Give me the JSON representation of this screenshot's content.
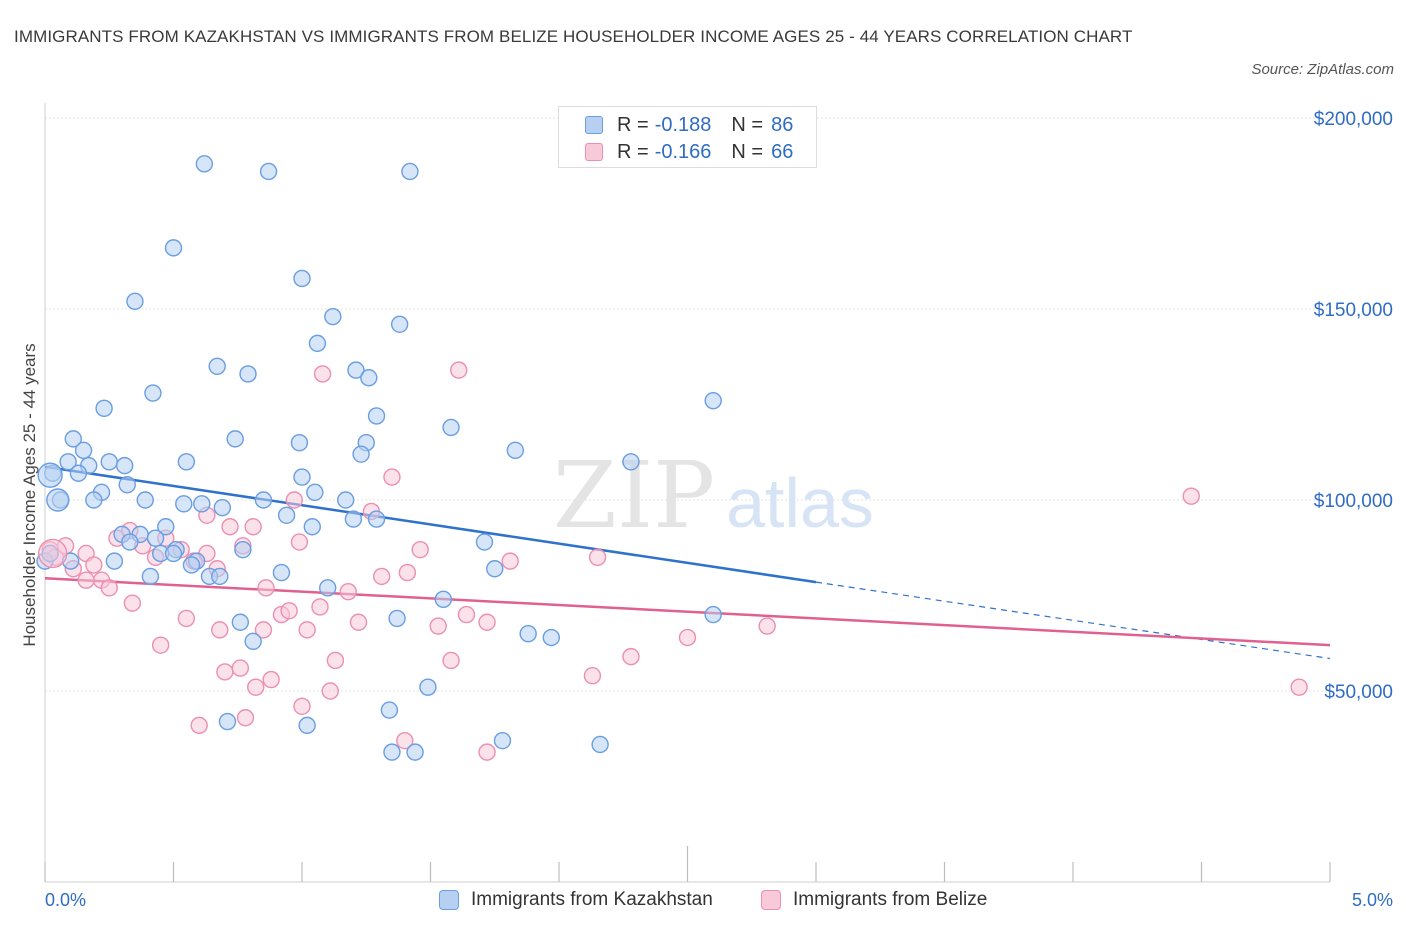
{
  "title": "IMMIGRANTS FROM KAZAKHSTAN VS IMMIGRANTS FROM BELIZE HOUSEHOLDER INCOME AGES 25 - 44 YEARS CORRELATION CHART",
  "source": "Source: ZipAtlas.com",
  "watermark": {
    "zip": "ZIP",
    "atlas": "atlas"
  },
  "legend_stats": [
    {
      "r_label": "R =",
      "r_value": "-0.188",
      "n_label": "N =",
      "n_value": "86"
    },
    {
      "r_label": "R =",
      "r_value": "-0.166",
      "n_label": "N =",
      "n_value": "66"
    }
  ],
  "x_tick_labels": {
    "min": "0.0%",
    "max": "5.0%"
  },
  "colors": {
    "kazakhstan": "#6a9ee2",
    "kazakhstan_fill": "#b7d0f2",
    "belize": "#ec8fb0",
    "belize_fill": "#f7c9d9",
    "kaz_line": "#2f72cc",
    "bel_line": "#e0608f",
    "axis_label": "#2f6cc4",
    "grid": "#e3e3e3"
  },
  "chart_data": {
    "type": "scatter",
    "title": "IMMIGRANTS FROM KAZAKHSTAN VS IMMIGRANTS FROM BELIZE HOUSEHOLDER INCOME AGES 25 - 44 YEARS CORRELATION CHART",
    "xlabel": "",
    "ylabel": "Householder Income Ages 25 - 44 years",
    "xlim": [
      0,
      5
    ],
    "ylim": [
      0,
      200000
    ],
    "x_unit": "%",
    "y_ticks": [
      50000,
      100000,
      150000,
      200000
    ],
    "y_tick_labels": [
      "$50,000",
      "$100,000",
      "$150,000",
      "$200,000"
    ],
    "grid": true,
    "legend_position": "bottom",
    "series": [
      {
        "name": "Immigrants from Kazakhstan",
        "color": "#6a9ee2",
        "r": -0.188,
        "n": 86,
        "trend": {
          "x0": 0.0,
          "y0": 108700,
          "x1": 3.0,
          "y1": 78500,
          "dashed_to_x": 5.0,
          "dashed_to_y": 58500
        },
        "points": [
          [
            0.62,
            188000
          ],
          [
            0.87,
            186000
          ],
          [
            1.42,
            186000
          ],
          [
            0.5,
            166000
          ],
          [
            1.0,
            158000
          ],
          [
            0.35,
            152000
          ],
          [
            1.12,
            148000
          ],
          [
            1.38,
            146000
          ],
          [
            1.06,
            141000
          ],
          [
            0.67,
            135000
          ],
          [
            0.79,
            133000
          ],
          [
            1.21,
            134000
          ],
          [
            1.26,
            132000
          ],
          [
            0.42,
            128000
          ],
          [
            2.6,
            126000
          ],
          [
            0.23,
            124000
          ],
          [
            1.29,
            122000
          ],
          [
            0.74,
            116000
          ],
          [
            1.58,
            119000
          ],
          [
            0.11,
            116000
          ],
          [
            0.99,
            115000
          ],
          [
            1.25,
            115000
          ],
          [
            1.23,
            112000
          ],
          [
            1.83,
            113000
          ],
          [
            0.15,
            113000
          ],
          [
            0.09,
            110000
          ],
          [
            0.55,
            110000
          ],
          [
            0.17,
            109000
          ],
          [
            0.25,
            110000
          ],
          [
            0.31,
            109000
          ],
          [
            2.28,
            110000
          ],
          [
            0.13,
            107000
          ],
          [
            1.0,
            106000
          ],
          [
            0.32,
            104000
          ],
          [
            1.05,
            102000
          ],
          [
            0.22,
            102000
          ],
          [
            0.03,
            107000
          ],
          [
            0.06,
            100000
          ],
          [
            0.19,
            100000
          ],
          [
            0.39,
            100000
          ],
          [
            0.54,
            99000
          ],
          [
            0.61,
            99000
          ],
          [
            0.69,
            98000
          ],
          [
            0.85,
            100000
          ],
          [
            1.17,
            100000
          ],
          [
            0.94,
            96000
          ],
          [
            1.04,
            93000
          ],
          [
            1.2,
            95000
          ],
          [
            1.29,
            95000
          ],
          [
            0.47,
            93000
          ],
          [
            0.3,
            91000
          ],
          [
            0.37,
            91000
          ],
          [
            0.43,
            90000
          ],
          [
            0.33,
            89000
          ],
          [
            0.51,
            87000
          ],
          [
            1.71,
            89000
          ],
          [
            0.77,
            87000
          ],
          [
            0.45,
            86000
          ],
          [
            0.5,
            86000
          ],
          [
            0.59,
            84000
          ],
          [
            0.57,
            83000
          ],
          [
            1.75,
            82000
          ],
          [
            0.64,
            80000
          ],
          [
            0.68,
            80000
          ],
          [
            0.41,
            80000
          ],
          [
            0.92,
            81000
          ],
          [
            1.1,
            77000
          ],
          [
            1.55,
            74000
          ],
          [
            2.6,
            70000
          ],
          [
            1.37,
            69000
          ],
          [
            0.76,
            68000
          ],
          [
            1.88,
            65000
          ],
          [
            1.97,
            64000
          ],
          [
            0.81,
            63000
          ],
          [
            1.49,
            51000
          ],
          [
            1.34,
            45000
          ],
          [
            0.71,
            42000
          ],
          [
            1.02,
            41000
          ],
          [
            1.78,
            37000
          ],
          [
            2.16,
            36000
          ],
          [
            1.35,
            34000
          ],
          [
            1.44,
            34000
          ],
          [
            0.0,
            84000
          ],
          [
            0.02,
            86000
          ],
          [
            0.27,
            84000
          ],
          [
            0.1,
            84000
          ]
        ]
      },
      {
        "name": "Immigrants from Belize",
        "color": "#ec8fb0",
        "r": -0.166,
        "n": 66,
        "trend": {
          "x0": 0.0,
          "y0": 79500,
          "x1": 5.0,
          "y1": 62000
        },
        "points": [
          [
            0.02,
            87000
          ],
          [
            0.04,
            85000
          ],
          [
            0.08,
            88000
          ],
          [
            0.11,
            82000
          ],
          [
            0.16,
            86000
          ],
          [
            0.19,
            83000
          ],
          [
            0.22,
            79000
          ],
          [
            0.25,
            77000
          ],
          [
            0.28,
            90000
          ],
          [
            0.33,
            92000
          ],
          [
            0.38,
            88000
          ],
          [
            0.43,
            85000
          ],
          [
            0.47,
            90000
          ],
          [
            0.53,
            87000
          ],
          [
            0.58,
            84000
          ],
          [
            0.63,
            86000
          ],
          [
            0.67,
            82000
          ],
          [
            0.72,
            93000
          ],
          [
            0.77,
            88000
          ],
          [
            0.81,
            93000
          ],
          [
            0.86,
            77000
          ],
          [
            0.92,
            70000
          ],
          [
            0.97,
            100000
          ],
          [
            1.02,
            66000
          ],
          [
            1.07,
            72000
          ],
          [
            1.13,
            58000
          ],
          [
            1.18,
            76000
          ],
          [
            1.22,
            68000
          ],
          [
            1.27,
            97000
          ],
          [
            1.31,
            80000
          ],
          [
            1.35,
            106000
          ],
          [
            1.41,
            81000
          ],
          [
            1.46,
            87000
          ],
          [
            1.53,
            67000
          ],
          [
            1.58,
            58000
          ],
          [
            1.64,
            70000
          ],
          [
            1.72,
            68000
          ],
          [
            1.81,
            84000
          ],
          [
            2.15,
            85000
          ],
          [
            2.13,
            54000
          ],
          [
            2.28,
            59000
          ],
          [
            2.5,
            64000
          ],
          [
            2.81,
            67000
          ],
          [
            1.08,
            133000
          ],
          [
            1.61,
            134000
          ],
          [
            0.16,
            79000
          ],
          [
            0.34,
            73000
          ],
          [
            0.45,
            62000
          ],
          [
            0.55,
            69000
          ],
          [
            0.68,
            66000
          ],
          [
            0.7,
            55000
          ],
          [
            0.76,
            56000
          ],
          [
            0.82,
            51000
          ],
          [
            0.88,
            53000
          ],
          [
            0.95,
            71000
          ],
          [
            1.11,
            50000
          ],
          [
            1.0,
            46000
          ],
          [
            0.78,
            43000
          ],
          [
            0.6,
            41000
          ],
          [
            1.4,
            37000
          ],
          [
            1.72,
            34000
          ],
          [
            4.46,
            101000
          ],
          [
            4.88,
            51000
          ],
          [
            0.63,
            96000
          ],
          [
            0.85,
            66000
          ],
          [
            0.99,
            89000
          ]
        ]
      }
    ]
  },
  "bottom_legend": [
    {
      "label": "Immigrants from Kazakhstan"
    },
    {
      "label": "Immigrants from Belize"
    }
  ]
}
